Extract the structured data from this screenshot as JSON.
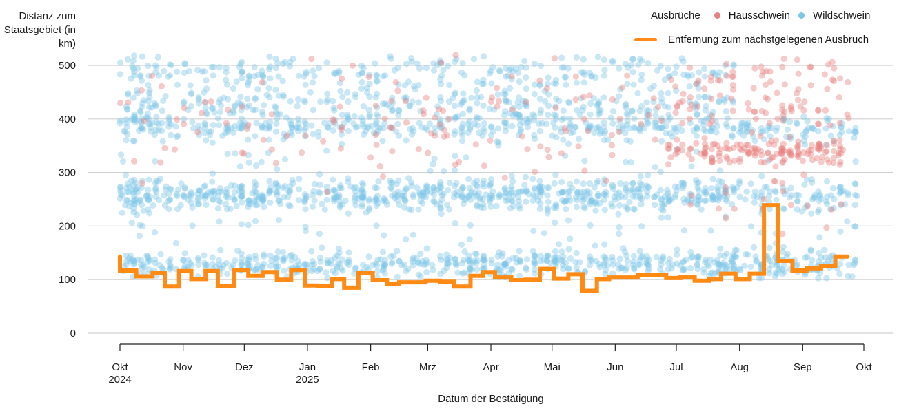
{
  "chart_data": {
    "type": "scatter",
    "title": "",
    "ylabel": "Distanz zum Staatsgebiet (in km)",
    "xlabel": "Datum der Bestätigung",
    "ylim": [
      0,
      520
    ],
    "xlim": [
      "2024-10-01",
      "2025-10-01"
    ],
    "grid": true,
    "y_ticks": [
      0,
      100,
      200,
      300,
      400,
      500
    ],
    "x_ticks": [
      {
        "date": "2024-10-01",
        "label": "Okt",
        "sublabel": "2024"
      },
      {
        "date": "2024-11-01",
        "label": "Nov",
        "sublabel": ""
      },
      {
        "date": "2024-12-01",
        "label": "Dez",
        "sublabel": ""
      },
      {
        "date": "2025-01-01",
        "label": "Jan",
        "sublabel": "2025"
      },
      {
        "date": "2025-02-01",
        "label": "Feb",
        "sublabel": ""
      },
      {
        "date": "2025-03-01",
        "label": "Mrz",
        "sublabel": ""
      },
      {
        "date": "2025-04-01",
        "label": "Apr",
        "sublabel": ""
      },
      {
        "date": "2025-05-01",
        "label": "Mai",
        "sublabel": ""
      },
      {
        "date": "2025-06-01",
        "label": "Jun",
        "sublabel": ""
      },
      {
        "date": "2025-07-01",
        "label": "Jul",
        "sublabel": ""
      },
      {
        "date": "2025-08-01",
        "label": "Aug",
        "sublabel": ""
      },
      {
        "date": "2025-09-01",
        "label": "Sep",
        "sublabel": ""
      },
      {
        "date": "2025-10-01",
        "label": "Okt",
        "sublabel": ""
      }
    ],
    "legend": {
      "placement": "top-right",
      "group_title": "Ausbrüche",
      "entries": [
        {
          "name": "Hausschwein",
          "type": "point",
          "color": "#e8807f"
        },
        {
          "name": "Wildschwein",
          "type": "point",
          "color": "#7ec6e6"
        },
        {
          "name": "Entfernung zum nächstgelegenen Ausbruch",
          "type": "line",
          "color": "#ff8a14"
        }
      ]
    },
    "series": [
      {
        "name": "Entfernung zum nächstgelegenen Ausbruch",
        "type": "step-line",
        "color": "#ff8a14",
        "points_day_km": [
          [
            0,
            143
          ],
          [
            0,
            117
          ],
          [
            8,
            117
          ],
          [
            8,
            106
          ],
          [
            16,
            106
          ],
          [
            16,
            113
          ],
          [
            22,
            113
          ],
          [
            22,
            87
          ],
          [
            29,
            87
          ],
          [
            29,
            116
          ],
          [
            35,
            116
          ],
          [
            35,
            101
          ],
          [
            42,
            101
          ],
          [
            42,
            116
          ],
          [
            48,
            116
          ],
          [
            48,
            88
          ],
          [
            56,
            88
          ],
          [
            56,
            118
          ],
          [
            63,
            118
          ],
          [
            63,
            107
          ],
          [
            70,
            107
          ],
          [
            70,
            114
          ],
          [
            77,
            114
          ],
          [
            77,
            100
          ],
          [
            84,
            100
          ],
          [
            84,
            118
          ],
          [
            91,
            118
          ],
          [
            91,
            89
          ],
          [
            97,
            89
          ],
          [
            97,
            88
          ],
          [
            104,
            88
          ],
          [
            104,
            101
          ],
          [
            110,
            101
          ],
          [
            110,
            85
          ],
          [
            117,
            85
          ],
          [
            117,
            113
          ],
          [
            124,
            113
          ],
          [
            124,
            99
          ],
          [
            131,
            99
          ],
          [
            131,
            92
          ],
          [
            137,
            92
          ],
          [
            137,
            95
          ],
          [
            144,
            95
          ],
          [
            144,
            95
          ],
          [
            150,
            95
          ],
          [
            150,
            98
          ],
          [
            157,
            98
          ],
          [
            157,
            96
          ],
          [
            164,
            96
          ],
          [
            164,
            87
          ],
          [
            172,
            87
          ],
          [
            172,
            107
          ],
          [
            178,
            107
          ],
          [
            178,
            114
          ],
          [
            184,
            114
          ],
          [
            184,
            104
          ],
          [
            192,
            104
          ],
          [
            192,
            99
          ],
          [
            199,
            99
          ],
          [
            199,
            100
          ],
          [
            206,
            100
          ],
          [
            206,
            120
          ],
          [
            213,
            120
          ],
          [
            213,
            102
          ],
          [
            220,
            102
          ],
          [
            220,
            110
          ],
          [
            227,
            110
          ],
          [
            227,
            79
          ],
          [
            234,
            79
          ],
          [
            234,
            101
          ],
          [
            240,
            101
          ],
          [
            240,
            104
          ],
          [
            254,
            104
          ],
          [
            254,
            108
          ],
          [
            268,
            108
          ],
          [
            268,
            103
          ],
          [
            275,
            103
          ],
          [
            275,
            105
          ],
          [
            282,
            105
          ],
          [
            282,
            98
          ],
          [
            289,
            98
          ],
          [
            289,
            101
          ],
          [
            295,
            101
          ],
          [
            295,
            111
          ],
          [
            302,
            111
          ],
          [
            302,
            101
          ],
          [
            309,
            101
          ],
          [
            309,
            111
          ],
          [
            316,
            111
          ],
          [
            316,
            239
          ],
          [
            323,
            239
          ],
          [
            323,
            135
          ],
          [
            330,
            135
          ],
          [
            330,
            117
          ],
          [
            337,
            117
          ],
          [
            337,
            121
          ],
          [
            344,
            121
          ],
          [
            344,
            126
          ],
          [
            351,
            126
          ],
          [
            351,
            143
          ],
          [
            357,
            143
          ]
        ]
      },
      {
        "name": "Wildschwein",
        "type": "scatter",
        "color": "#7ec6e6",
        "description": "Hundreds of outbreak points; values summarized as density bands (km) by period",
        "bands": [
          {
            "from_day": 0,
            "to_day": 365,
            "km_center": 130,
            "km_spread": 22,
            "count": 620
          },
          {
            "from_day": 0,
            "to_day": 300,
            "km_center": 258,
            "km_spread": 28,
            "count": 700
          },
          {
            "from_day": 300,
            "to_day": 365,
            "km_center": 258,
            "km_spread": 32,
            "count": 90
          },
          {
            "from_day": 0,
            "to_day": 365,
            "km_center": 385,
            "km_spread": 22,
            "count": 420
          },
          {
            "from_day": 0,
            "to_day": 300,
            "km_center": 430,
            "km_spread": 35,
            "count": 300
          },
          {
            "from_day": 0,
            "to_day": 300,
            "km_center": 490,
            "km_spread": 28,
            "count": 240
          },
          {
            "from_day": 0,
            "to_day": 365,
            "km_center": 330,
            "km_spread": 60,
            "count": 60
          },
          {
            "from_day": 0,
            "to_day": 365,
            "km_center": 190,
            "km_spread": 30,
            "count": 45
          }
        ]
      },
      {
        "name": "Hausschwein",
        "type": "scatter",
        "color": "#e8807f",
        "description": "Domestic-pig outbreaks; sparse before July 2025, dense clusters ~310-360 km from July to Sept 2025",
        "bands": [
          {
            "from_day": 0,
            "to_day": 270,
            "km_center": 400,
            "km_spread": 110,
            "count": 130
          },
          {
            "from_day": 270,
            "to_day": 357,
            "km_center": 340,
            "km_spread": 22,
            "count": 150
          },
          {
            "from_day": 270,
            "to_day": 357,
            "km_center": 420,
            "km_spread": 40,
            "count": 60
          },
          {
            "from_day": 270,
            "to_day": 357,
            "km_center": 480,
            "km_spread": 30,
            "count": 40
          },
          {
            "from_day": 280,
            "to_day": 357,
            "km_center": 240,
            "km_spread": 40,
            "count": 20
          }
        ]
      }
    ]
  }
}
